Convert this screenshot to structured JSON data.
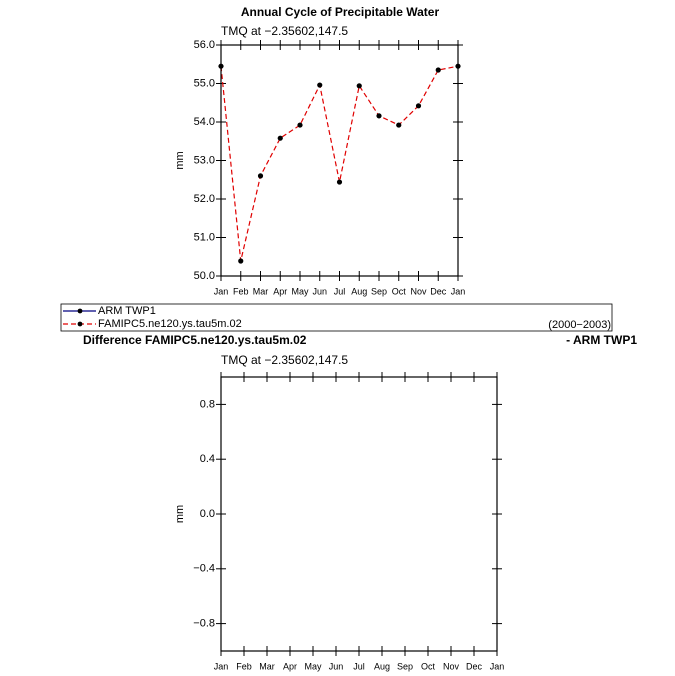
{
  "chart_data": [
    {
      "type": "line",
      "title": "Annual Cycle of Precipitable Water",
      "subtitle": "TMQ at −2.35602,147.5",
      "ylabel": "mm",
      "categories": [
        "Jan",
        "Feb",
        "Mar",
        "Apr",
        "May",
        "Jun",
        "Jul",
        "Aug",
        "Sep",
        "Oct",
        "Nov",
        "Dec",
        "Jan"
      ],
      "series": [
        {
          "name": "ARM TWP1",
          "color": "#000080",
          "dashed": false,
          "values": [
            null,
            null,
            null,
            null,
            null,
            null,
            null,
            null,
            null,
            null,
            null,
            null,
            null
          ]
        },
        {
          "name": "FAMIPC5.ne120.ys.tau5m.02",
          "color": "#e00000",
          "dashed": true,
          "values": [
            55.45,
            50.39,
            52.6,
            53.58,
            53.92,
            54.96,
            52.44,
            54.94,
            54.16,
            53.92,
            54.42,
            55.35,
            55.45
          ]
        }
      ],
      "period": "(2000−2003)",
      "ylim": [
        50,
        56
      ],
      "yticks": [
        {
          "value": 50,
          "label": "50.0"
        },
        {
          "value": 51,
          "label": "51.0"
        },
        {
          "value": 52,
          "label": "52.0"
        },
        {
          "value": 53,
          "label": "53.0"
        },
        {
          "value": 54,
          "label": "54.0"
        },
        {
          "value": 55,
          "label": "55.0"
        },
        {
          "value": 56,
          "label": "56.0"
        }
      ]
    },
    {
      "type": "line",
      "title": "Difference FAMIPC5.ne120.ys.tau5m.02",
      "title_right": "- ARM TWP1",
      "subtitle": "TMQ at −2.35602,147.5",
      "ylabel": "mm",
      "categories": [
        "Jan",
        "Feb",
        "Mar",
        "Apr",
        "May",
        "Jun",
        "Jul",
        "Aug",
        "Sep",
        "Oct",
        "Nov",
        "Dec",
        "Jan"
      ],
      "series": [],
      "ylim": [
        -1,
        1
      ],
      "yticks": [
        {
          "value": -0.8,
          "label": "−0.8"
        },
        {
          "value": -0.4,
          "label": "−0.4"
        },
        {
          "value": 0,
          "label": "0.0"
        },
        {
          "value": 0.4,
          "label": "0.4"
        },
        {
          "value": 0.8,
          "label": "0.8"
        }
      ]
    }
  ]
}
